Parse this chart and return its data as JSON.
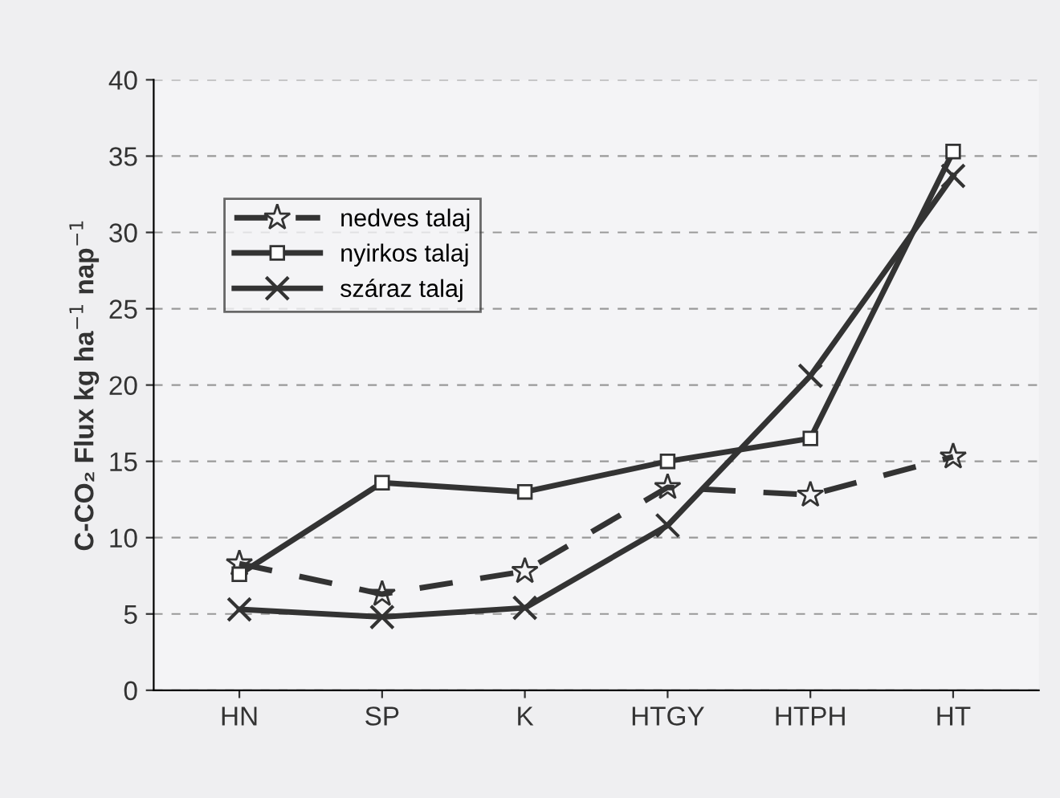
{
  "chart_data": {
    "type": "line",
    "ylabel": "C-CO₂ Flux kg ha$^{−1}$ nap$^{−1}$",
    "categories": [
      "HN",
      "SP",
      "K",
      "HTGY",
      "HTPH",
      "HT"
    ],
    "series": [
      {
        "name": "nedves talaj",
        "color": "#333333",
        "marker": "star",
        "line_style": "dashed",
        "values": [
          8.3,
          6.3,
          7.8,
          13.3,
          12.8,
          15.3
        ]
      },
      {
        "name": "nyirkos talaj",
        "color": "#333333",
        "marker": "square",
        "line_style": "solid",
        "values": [
          7.6,
          13.6,
          13.0,
          15.0,
          16.5,
          35.3
        ]
      },
      {
        "name": "száraz talaj",
        "color": "#333333",
        "marker": "cross",
        "line_style": "solid",
        "values": [
          5.3,
          4.8,
          5.4,
          10.8,
          20.6,
          33.7
        ]
      }
    ],
    "ylim": [
      0,
      40
    ],
    "yticks": [
      0,
      5,
      10,
      15,
      20,
      25,
      30,
      35,
      40
    ],
    "grid": "y",
    "legend": "top left"
  }
}
